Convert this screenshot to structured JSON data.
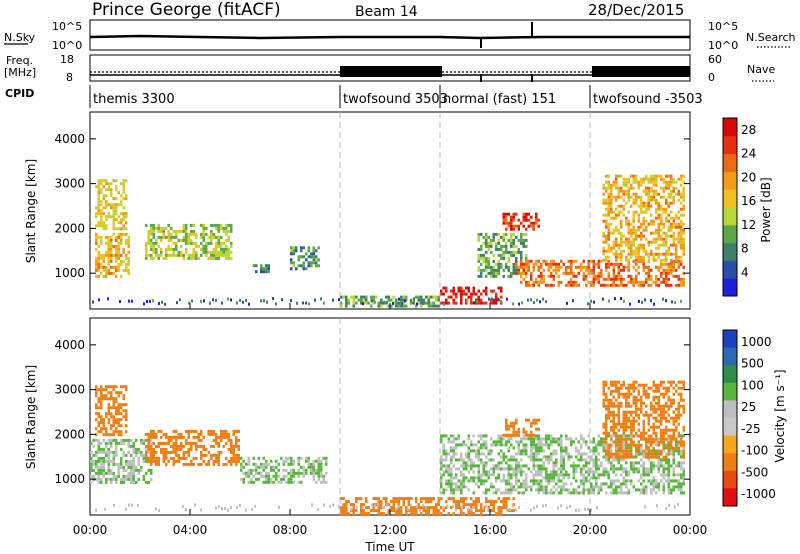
{
  "header": {
    "site": "Prince George (fitACF)",
    "beam": "Beam 14",
    "date": "28/Dec/2015"
  },
  "strips": {
    "nsky_label": "N.Sky",
    "nsky_top_tick": "10^5",
    "nsky_bottom_tick": "10^0",
    "nsearch_label": "N.Search",
    "nsearch_top_tick": "10^5",
    "nsearch_bottom_tick": "10^0",
    "freq_label_line1": "Freq.",
    "freq_label_line2": "[MHz]",
    "freq_top_tick": "18",
    "freq_bottom_tick": "8",
    "nave_label": "Nave",
    "nave_top_tick": "60",
    "nave_bottom_tick": "0",
    "cpid_label": "CPID"
  },
  "cpid_segments": [
    {
      "label": "themis 3300",
      "start_hour": 0,
      "end_hour": 10
    },
    {
      "label": "twofsound 3503",
      "start_hour": 10,
      "end_hour": 14
    },
    {
      "label": "normal (fast) 151",
      "start_hour": 14,
      "end_hour": 20
    },
    {
      "label": "twofsound -3503",
      "start_hour": 20,
      "end_hour": 24
    }
  ],
  "colors": {
    "power_scale": [
      "#1f1fe0",
      "#2b4ea8",
      "#3f7f6a",
      "#5aa84a",
      "#b8d638",
      "#f0c020",
      "#f29a18",
      "#ee6a12",
      "#e83010",
      "#d80808"
    ],
    "velocity_scale": [
      "#1b3fbf",
      "#2c6ab0",
      "#2f8c4a",
      "#56b83a",
      "#bfbfbf",
      "#c8c8c8",
      "#f7a51b",
      "#f07e13",
      "#e64a10",
      "#e01010"
    ]
  },
  "chart_data": [
    {
      "type": "heatmap",
      "panel": "power",
      "ylabel": "Slant Range [km]",
      "ylim": [
        200,
        4600
      ],
      "yticks": [
        "1000",
        "2000",
        "3000",
        "4000"
      ],
      "xlim_hours": [
        0,
        24
      ],
      "xticks": [
        "00:00",
        "04:00",
        "08:00",
        "12:00",
        "16:00",
        "20:00",
        "00:00"
      ],
      "colorbar": {
        "label": "Power [dB]",
        "range": [
          0,
          30
        ],
        "ticks": [
          "4",
          "8",
          "12",
          "16",
          "20",
          "24",
          "28"
        ]
      },
      "regions": [
        {
          "hour_start": 0.2,
          "hour_end": 1.6,
          "range_start": 900,
          "range_end": 1900,
          "value": 18
        },
        {
          "hour_start": 0.2,
          "hour_end": 1.5,
          "range_start": 2000,
          "range_end": 3100,
          "value": 16
        },
        {
          "hour_start": 2.2,
          "hour_end": 5.7,
          "range_start": 1300,
          "range_end": 2100,
          "value": 13
        },
        {
          "hour_start": 6.5,
          "hour_end": 7.2,
          "range_start": 1000,
          "range_end": 1200,
          "value": 8
        },
        {
          "hour_start": 8.0,
          "hour_end": 9.2,
          "range_start": 1100,
          "range_end": 1600,
          "value": 9
        },
        {
          "hour_start": 10.0,
          "hour_end": 14.0,
          "range_start": 250,
          "range_end": 500,
          "value": 10
        },
        {
          "hour_start": 14.0,
          "hour_end": 16.5,
          "range_start": 350,
          "range_end": 700,
          "value": 28
        },
        {
          "hour_start": 15.5,
          "hour_end": 17.5,
          "range_start": 900,
          "range_end": 1900,
          "value": 10
        },
        {
          "hour_start": 16.5,
          "hour_end": 18.0,
          "range_start": 2000,
          "range_end": 2350,
          "value": 26
        },
        {
          "hour_start": 17.0,
          "hour_end": 23.8,
          "range_start": 700,
          "range_end": 1300,
          "value": 22
        },
        {
          "hour_start": 20.5,
          "hour_end": 23.8,
          "range_start": 1300,
          "range_end": 3200,
          "value": 18
        }
      ]
    },
    {
      "type": "heatmap",
      "panel": "velocity",
      "ylabel": "Slant Range [km]",
      "xlabel": "Time UT",
      "ylim": [
        200,
        4600
      ],
      "yticks": [
        "1000",
        "2000",
        "3000",
        "4000"
      ],
      "xlim_hours": [
        0,
        24
      ],
      "xticks": [
        "00:00",
        "04:00",
        "08:00",
        "12:00",
        "16:00",
        "20:00",
        "00:00"
      ],
      "colorbar": {
        "label": "Velocity [m s⁻¹]",
        "ticks": [
          "1000",
          "500",
          "100",
          "25",
          "-25",
          "-100",
          "-500",
          "-1000"
        ]
      },
      "regions": [
        {
          "hour_start": 0.0,
          "hour_end": 2.5,
          "range_start": 900,
          "range_end": 1900,
          "value": 0
        },
        {
          "hour_start": 0.2,
          "hour_end": 1.5,
          "range_start": 2000,
          "range_end": 3100,
          "value": -200
        },
        {
          "hour_start": 2.2,
          "hour_end": 6.0,
          "range_start": 1300,
          "range_end": 2100,
          "value": -150
        },
        {
          "hour_start": 6.0,
          "hour_end": 9.5,
          "range_start": 900,
          "range_end": 1500,
          "value": 0
        },
        {
          "hour_start": 10.0,
          "hour_end": 17.0,
          "range_start": 250,
          "range_end": 600,
          "value": -200
        },
        {
          "hour_start": 14.0,
          "hour_end": 23.8,
          "range_start": 700,
          "range_end": 2000,
          "value": 0
        },
        {
          "hour_start": 16.5,
          "hour_end": 18.0,
          "range_start": 2000,
          "range_end": 2350,
          "value": -300
        },
        {
          "hour_start": 20.5,
          "hour_end": 23.8,
          "range_start": 1500,
          "range_end": 3200,
          "value": -250
        }
      ]
    }
  ]
}
